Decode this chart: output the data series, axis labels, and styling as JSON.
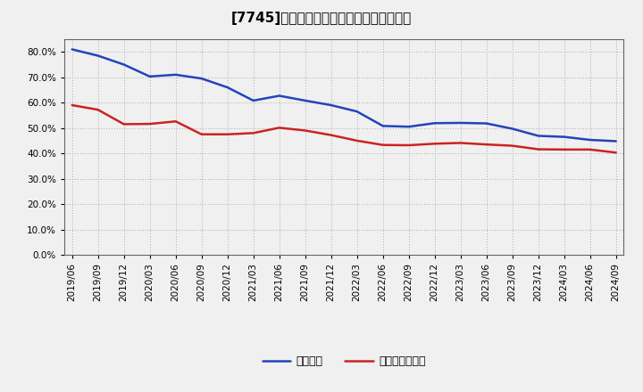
{
  "title": "[7745]　固定比率、固定長期適合率の推移",
  "background_color": "#f0f0f0",
  "plot_background_color": "#f0f0f0",
  "grid_color": "#aaaaaa",
  "ylim": [
    0.0,
    0.85
  ],
  "yticks": [
    0.0,
    0.1,
    0.2,
    0.3,
    0.4,
    0.5,
    0.6,
    0.7,
    0.8
  ],
  "x_labels": [
    "2019/06",
    "2019/09",
    "2019/12",
    "2020/03",
    "2020/06",
    "2020/09",
    "2020/12",
    "2021/03",
    "2021/06",
    "2021/09",
    "2021/12",
    "2022/03",
    "2022/06",
    "2022/09",
    "2022/12",
    "2023/03",
    "2023/06",
    "2023/09",
    "2023/12",
    "2024/03",
    "2024/06",
    "2024/09"
  ],
  "fixed_ratio": [
    0.81,
    0.785,
    0.75,
    0.703,
    0.71,
    0.695,
    0.66,
    0.608,
    0.627,
    0.608,
    0.59,
    0.565,
    0.508,
    0.505,
    0.519,
    0.52,
    0.518,
    0.497,
    0.469,
    0.465,
    0.453,
    0.448
  ],
  "fixed_long_ratio": [
    0.59,
    0.572,
    0.515,
    0.516,
    0.526,
    0.475,
    0.475,
    0.48,
    0.501,
    0.49,
    0.472,
    0.45,
    0.433,
    0.432,
    0.438,
    0.441,
    0.435,
    0.43,
    0.416,
    0.415,
    0.415,
    0.403
  ],
  "line1_color": "#2244bb",
  "line2_color": "#cc2222",
  "line1_label": "固定比率",
  "line2_label": "固定長期適合率",
  "line_width": 1.8,
  "title_fontsize": 11,
  "tick_fontsize": 7.5,
  "legend_fontsize": 9
}
